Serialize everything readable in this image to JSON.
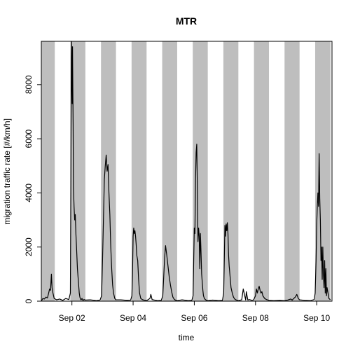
{
  "chart_data": {
    "type": "line",
    "title": "MTR",
    "xlabel": "time",
    "ylabel": "migration traffic rate [#/km/h]",
    "x_unit": "day of September",
    "xlim": [
      1.0,
      10.5
    ],
    "ylim": [
      0,
      9600
    ],
    "x_ticks": [
      {
        "value": 2,
        "label": "Sep 02"
      },
      {
        "value": 4,
        "label": "Sep 04"
      },
      {
        "value": 6,
        "label": "Sep 06"
      },
      {
        "value": 8,
        "label": "Sep 08"
      },
      {
        "value": 10,
        "label": "Sep 10"
      }
    ],
    "y_ticks": [
      0,
      2000,
      4000,
      6000,
      8000
    ],
    "night_shading_color": "#bebebe",
    "line_color": "#000000",
    "night_bands": [
      [
        1.0,
        1.44
      ],
      [
        1.95,
        2.44
      ],
      [
        2.95,
        3.44
      ],
      [
        3.95,
        4.44
      ],
      [
        4.95,
        5.44
      ],
      [
        5.95,
        6.44
      ],
      [
        6.95,
        7.44
      ],
      [
        7.95,
        8.44
      ],
      [
        8.95,
        9.44
      ],
      [
        9.95,
        10.45
      ]
    ],
    "series": [
      {
        "x": [
          1.0,
          1.05,
          1.1,
          1.15,
          1.2,
          1.24,
          1.27,
          1.3,
          1.33,
          1.35,
          1.38,
          1.42,
          1.5,
          1.6,
          1.7,
          1.8,
          1.9,
          1.95,
          1.96,
          1.97,
          1.98,
          1.99,
          2.0,
          2.01,
          2.02,
          2.03,
          2.04,
          2.05,
          2.07,
          2.09,
          2.11,
          2.13,
          2.15,
          2.18,
          2.2,
          2.22,
          2.24,
          2.26,
          2.28,
          2.3,
          2.33,
          2.36,
          2.4,
          2.44,
          2.6,
          2.8,
          2.92,
          2.97,
          3.0,
          3.03,
          3.06,
          3.09,
          3.12,
          3.15,
          3.18,
          3.21,
          3.24,
          3.27,
          3.3,
          3.33,
          3.36,
          3.4,
          3.44,
          3.6,
          3.8,
          3.92,
          3.96,
          3.98,
          4.0,
          4.02,
          4.04,
          4.06,
          4.08,
          4.1,
          4.12,
          4.15,
          4.18,
          4.21,
          4.25,
          4.3,
          4.35,
          4.4,
          4.44,
          4.55,
          4.58,
          4.62,
          4.7,
          4.8,
          4.92,
          4.97,
          5.0,
          5.03,
          5.06,
          5.1,
          5.14,
          5.18,
          5.22,
          5.26,
          5.3,
          5.35,
          5.4,
          5.44,
          5.6,
          5.8,
          5.92,
          5.96,
          5.98,
          6.0,
          6.02,
          6.04,
          6.06,
          6.08,
          6.1,
          6.12,
          6.14,
          6.16,
          6.18,
          6.2,
          6.22,
          6.24,
          6.26,
          6.28,
          6.3,
          6.33,
          6.36,
          6.4,
          6.44,
          6.6,
          6.8,
          6.92,
          6.96,
          6.98,
          7.0,
          7.02,
          7.04,
          7.06,
          7.08,
          7.1,
          7.12,
          7.14,
          7.17,
          7.2,
          7.24,
          7.28,
          7.32,
          7.36,
          7.4,
          7.44,
          7.55,
          7.6,
          7.68,
          7.7,
          7.75,
          7.8,
          7.88,
          7.93,
          7.96,
          8.0,
          8.03,
          8.06,
          8.09,
          8.12,
          8.15,
          8.18,
          8.21,
          8.24,
          8.3,
          8.36,
          8.44,
          8.6,
          8.8,
          8.92,
          8.96,
          9.0,
          9.05,
          9.1,
          9.15,
          9.2,
          9.25,
          9.3,
          9.35,
          9.4,
          9.44,
          9.6,
          9.8,
          9.92,
          9.95,
          9.98,
          10.0,
          10.02,
          10.04,
          10.06,
          10.08,
          10.1,
          10.12,
          10.14,
          10.16,
          10.18,
          10.2,
          10.22,
          10.24,
          10.26,
          10.28,
          10.3,
          10.32,
          10.34,
          10.37,
          10.4,
          10.45
        ],
        "y": [
          0,
          100,
          80,
          150,
          120,
          300,
          450,
          400,
          1000,
          500,
          300,
          100,
          50,
          80,
          30,
          100,
          60,
          300,
          3000,
          6000,
          9000,
          9600,
          8000,
          7300,
          9400,
          7800,
          6500,
          4200,
          3500,
          3000,
          3200,
          2500,
          2000,
          1200,
          900,
          600,
          300,
          150,
          80,
          50,
          100,
          30,
          60,
          40,
          50,
          20,
          40,
          200,
          1500,
          3000,
          4500,
          5000,
          5400,
          4800,
          5050,
          4000,
          3200,
          2000,
          1200,
          600,
          300,
          100,
          50,
          50,
          30,
          40,
          200,
          1000,
          2400,
          2700,
          2500,
          2600,
          2400,
          2100,
          1700,
          1500,
          800,
          300,
          100,
          60,
          40,
          30,
          20,
          100,
          250,
          60,
          40,
          20,
          30,
          200,
          900,
          1600,
          2050,
          1700,
          1300,
          900,
          600,
          350,
          150,
          60,
          30,
          20,
          50,
          20,
          30,
          200,
          1500,
          2700,
          2500,
          4500,
          5500,
          5800,
          4200,
          2200,
          2700,
          2400,
          1200,
          2500,
          1800,
          1000,
          700,
          400,
          200,
          100,
          60,
          30,
          20,
          40,
          20,
          30,
          300,
          1500,
          2800,
          2400,
          2850,
          2600,
          2900,
          2500,
          1700,
          1300,
          900,
          500,
          300,
          150,
          80,
          50,
          30,
          20,
          50,
          450,
          40,
          350,
          40,
          60,
          30,
          40,
          100,
          200,
          450,
          300,
          450,
          550,
          400,
          300,
          350,
          200,
          100,
          60,
          30,
          20,
          30,
          20,
          20,
          30,
          40,
          60,
          80,
          40,
          100,
          150,
          250,
          100,
          50,
          30,
          20,
          60,
          300,
          1500,
          2800,
          3500,
          4000,
          3500,
          5450,
          3800,
          3000,
          1500,
          2000,
          800,
          2000,
          1000,
          500,
          1500,
          300,
          1200,
          200,
          500,
          300,
          100,
          50
        ]
      }
    ]
  }
}
